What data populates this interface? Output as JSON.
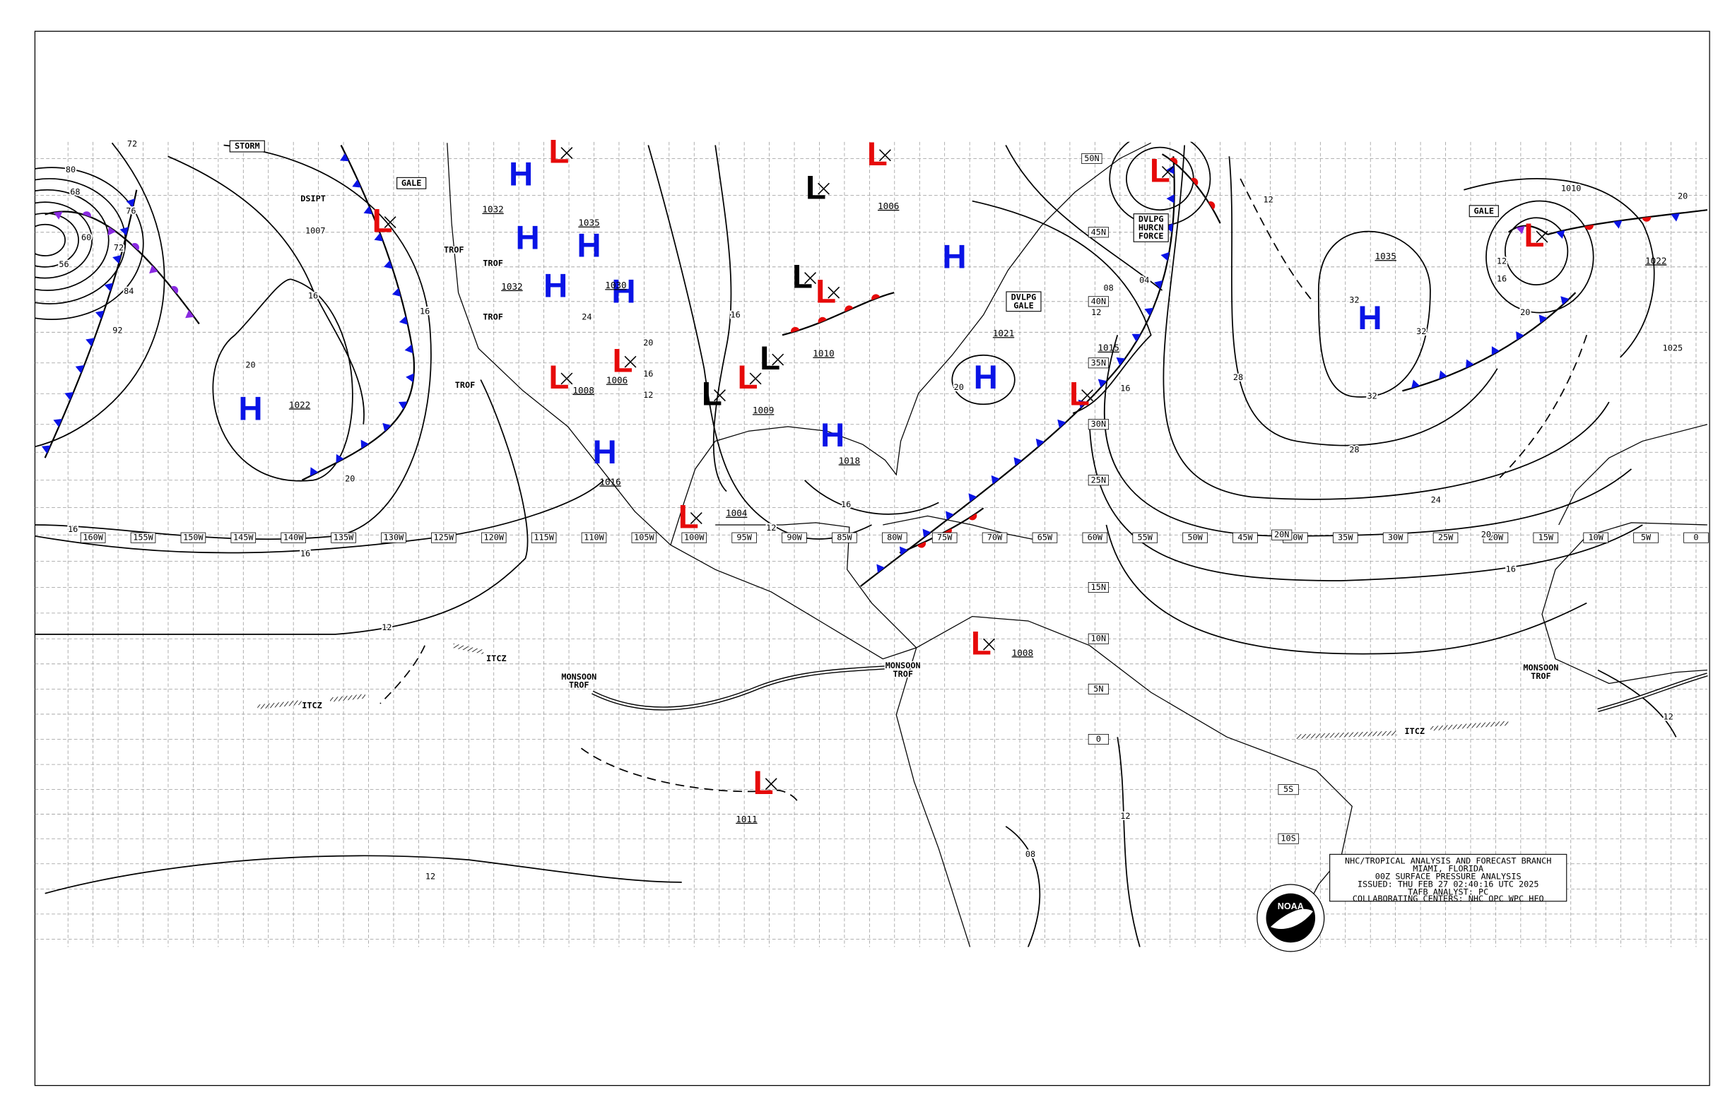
{
  "grid": {
    "longitudes": [
      "160W",
      "155W",
      "150W",
      "145W",
      "140W",
      "135W",
      "130W",
      "125W",
      "120W",
      "115W",
      "110W",
      "105W",
      "100W",
      "95W",
      "90W",
      "85W",
      "80W",
      "75W",
      "70W",
      "65W",
      "60W",
      "55W",
      "50W",
      "45W",
      "40W",
      "35W",
      "30W",
      "25W",
      "20W",
      "15W",
      "10W",
      "5W",
      "0"
    ],
    "latitudes": [
      "50N",
      "45N",
      "40N",
      "35N",
      "30N",
      "25N",
      "20N",
      "15N",
      "10N",
      "5N",
      "0",
      "5S",
      "10S"
    ]
  },
  "pressure_centers": [
    {
      "letter": "H",
      "color": "#0a14e6",
      "pressure": "1022"
    },
    {
      "letter": "H",
      "color": "#0a14e6",
      "pressure": "1035"
    },
    {
      "letter": "H",
      "color": "#0a14e6",
      "pressure": "1032"
    },
    {
      "letter": "H",
      "color": "#0a14e6",
      "pressure": "1032"
    },
    {
      "letter": "H",
      "color": "#0a14e6",
      "pressure": "1030"
    },
    {
      "letter": "H",
      "color": "#0a14e6"
    },
    {
      "letter": "H",
      "color": "#0a14e6",
      "pressure": "1016"
    },
    {
      "letter": "H",
      "color": "#0a14e6",
      "pressure": "1018"
    },
    {
      "letter": "H",
      "color": "#0a14e6",
      "pressure": "1021"
    },
    {
      "letter": "H",
      "color": "#0a14e6"
    },
    {
      "letter": "H",
      "color": "#0a14e6",
      "pressure": "1035"
    },
    {
      "letter": "L",
      "color": "#e60a0a"
    },
    {
      "letter": "L",
      "color": "#e60a0a"
    },
    {
      "letter": "L",
      "color": "#e60a0a",
      "pressure": "1008"
    },
    {
      "letter": "L",
      "color": "#e60a0a",
      "pressure": "1006"
    },
    {
      "letter": "L",
      "color": "#e60a0a",
      "pressure": "1004"
    },
    {
      "letter": "L",
      "color": "#e60a0a",
      "pressure": "1009"
    },
    {
      "letter": "L",
      "color": "#000000"
    },
    {
      "letter": "L",
      "color": "#000000",
      "pressure": "1010"
    },
    {
      "letter": "L",
      "color": "#000000"
    },
    {
      "letter": "L",
      "color": "#000000"
    },
    {
      "letter": "L",
      "color": "#e60a0a"
    },
    {
      "letter": "L",
      "color": "#e60a0a",
      "pressure": "1006"
    },
    {
      "letter": "L",
      "color": "#e60a0a",
      "pressure": "1015"
    },
    {
      "letter": "L",
      "color": "#e60a0a"
    },
    {
      "letter": "L",
      "color": "#e60a0a",
      "pressure": "1008"
    },
    {
      "letter": "L",
      "color": "#e60a0a",
      "pressure": "1011"
    },
    {
      "letter": "L",
      "color": "#e60a0a",
      "pressure": "1022"
    }
  ],
  "isobar_labels": [
    "80",
    "68",
    "76",
    "60",
    "72",
    "56",
    "84",
    "92",
    "72",
    "16",
    "20",
    "20",
    "16",
    "16",
    "16",
    "12",
    "1007",
    "24",
    "16",
    "12",
    "16",
    "20",
    "12",
    "16",
    "08",
    "04",
    "12",
    "16",
    "20",
    "12",
    "28",
    "32",
    "32",
    "32",
    "28",
    "24",
    "20",
    "16",
    "12",
    "16",
    "20",
    "1010",
    "1025",
    "12",
    "12",
    "08",
    "12",
    "20"
  ],
  "features": [
    {
      "lines": [
        "STORM"
      ],
      "boxed": true
    },
    {
      "lines": [
        "GALE"
      ],
      "boxed": true
    },
    {
      "lines": [
        "DSIPT"
      ],
      "boxed": false
    },
    {
      "lines": [
        "TROF"
      ],
      "boxed": false
    },
    {
      "lines": [
        "TROF"
      ],
      "boxed": false
    },
    {
      "lines": [
        "TROF"
      ],
      "boxed": false
    },
    {
      "lines": [
        "TROF"
      ],
      "boxed": false
    },
    {
      "lines": [
        "DVLPG",
        "GALE"
      ],
      "boxed": true
    },
    {
      "lines": [
        "DVLPG",
        "HURCN",
        "FORCE"
      ],
      "boxed": true
    },
    {
      "lines": [
        "GALE"
      ],
      "boxed": true
    },
    {
      "lines": [
        "ITCZ"
      ],
      "boxed": false
    },
    {
      "lines": [
        "ITCZ"
      ],
      "boxed": false
    },
    {
      "lines": [
        "ITCZ"
      ],
      "boxed": false
    },
    {
      "lines": [
        "MONSOON",
        "TROF"
      ],
      "boxed": false
    },
    {
      "lines": [
        "MONSOON",
        "TROF"
      ],
      "boxed": false
    },
    {
      "lines": [
        "MONSOON",
        "TROF"
      ],
      "boxed": false
    }
  ],
  "info_box": {
    "lines": [
      "NHC/TROPICAL ANALYSIS AND FORECAST BRANCH",
      "MIAMI, FLORIDA",
      "00Z SURFACE PRESSURE ANALYSIS",
      "ISSUED: THU FEB 27 02:40:16 UTC 2025",
      "TAFB ANALYST: PC",
      "COLLABORATING CENTERS: NHC OPC WPC HFO"
    ]
  },
  "logo": "NOAA"
}
